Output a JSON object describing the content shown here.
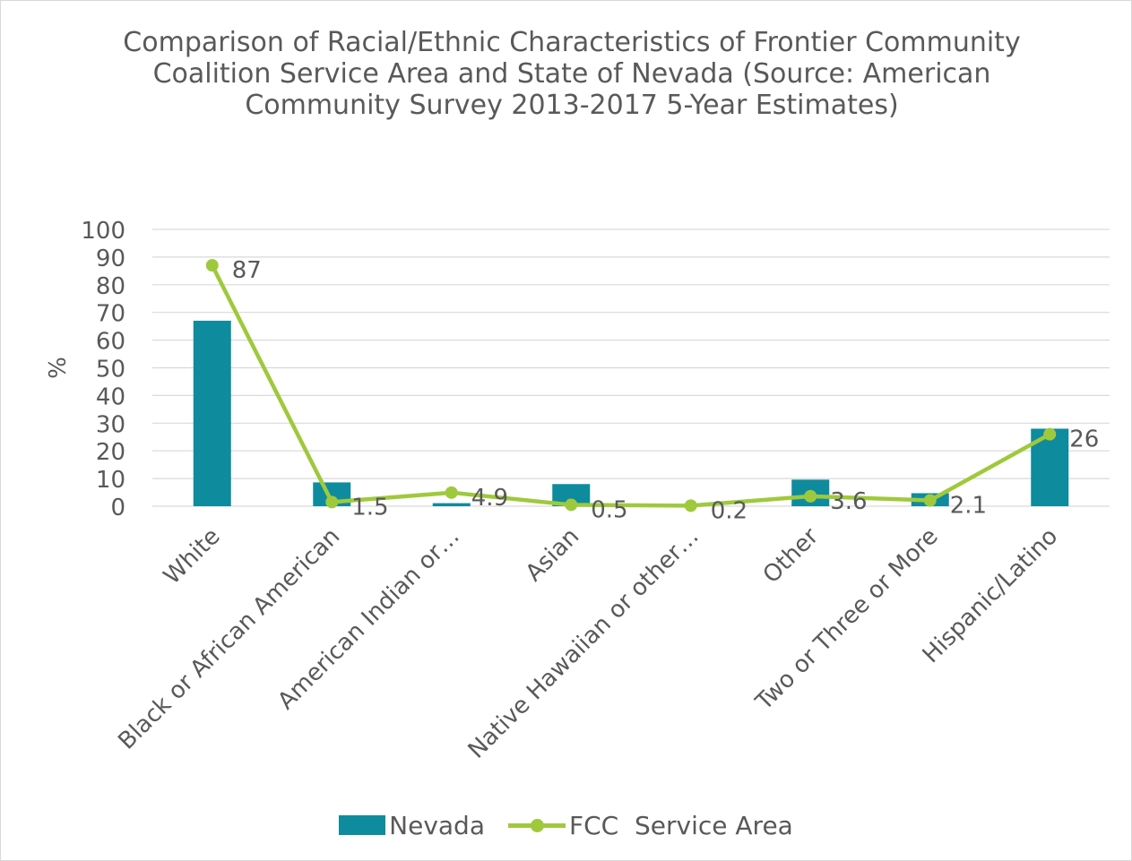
{
  "chart_data": {
    "type": "bar",
    "title": "Comparison of Racial/Ethnic Characteristics of Frontier Community Coalition Service Area and State of Nevada (Source: American Community Survey 2013-2017 5-Year Estimates)",
    "xlabel": "",
    "ylabel": "%",
    "ylim": [
      0,
      100
    ],
    "yticks": [
      "0",
      "10",
      "20",
      "30",
      "40",
      "50",
      "60",
      "70",
      "80",
      "90",
      "100"
    ],
    "grid": true,
    "legend_position": "bottom",
    "categories": [
      "White",
      "Black or African American",
      "American Indian or…",
      "Asian",
      "Native Hawaiian or other…",
      "Other",
      "Two or Three or More",
      "Hispanic/Latino"
    ],
    "series": [
      {
        "name": "Nevada",
        "kind": "bar",
        "color": "#0f8b9e",
        "values": [
          67,
          8.6,
          1.1,
          8,
          0.6,
          9.6,
          4.7,
          28
        ]
      },
      {
        "name": "FCC  Service Area",
        "kind": "line",
        "color": "#9fc93c",
        "values": [
          87,
          1.5,
          4.9,
          0.5,
          0.2,
          3.6,
          2.1,
          26
        ],
        "data_labels": [
          "87",
          "1.5",
          "4.9",
          "0.5",
          "0.2",
          "3.6",
          "2.1",
          "26"
        ]
      }
    ]
  }
}
